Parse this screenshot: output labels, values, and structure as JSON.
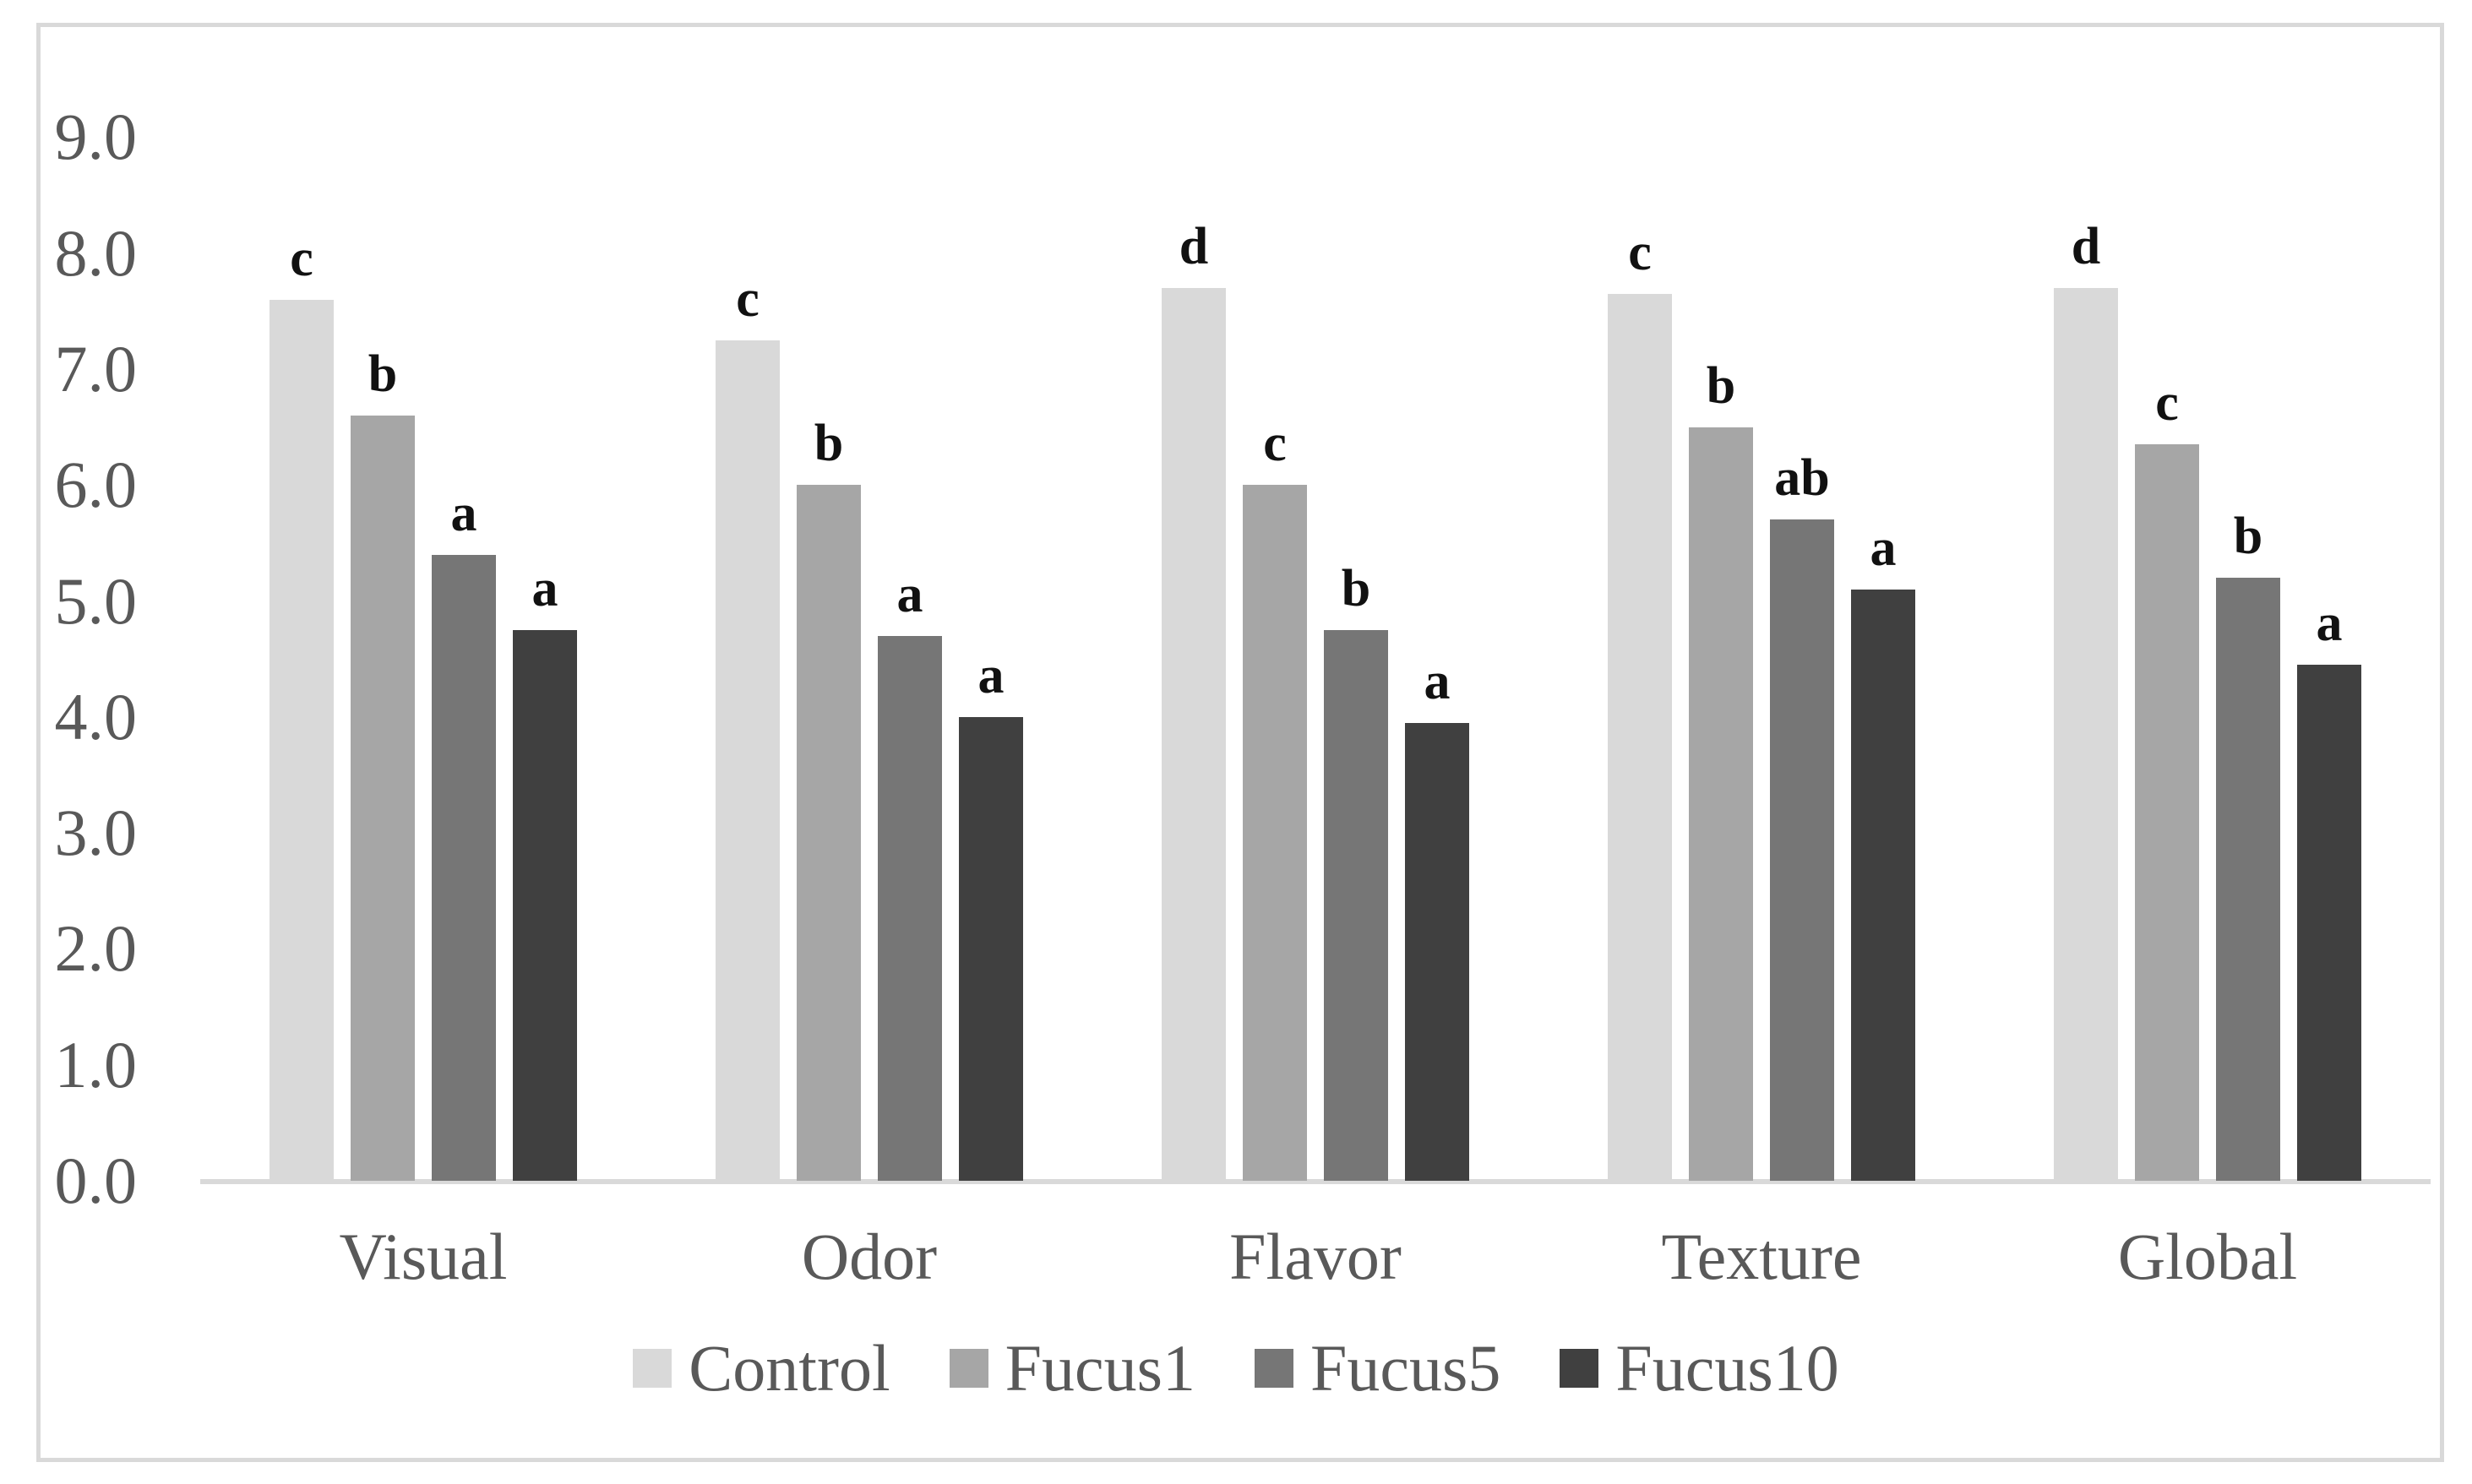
{
  "chart_data": {
    "type": "bar",
    "title": "",
    "xlabel": "",
    "ylabel": "",
    "categories": [
      "Visual",
      "Odor",
      "Flavor",
      "Texture",
      "Global"
    ],
    "series": [
      {
        "name": "Control",
        "color": "#d9d9d9",
        "values": [
          7.6,
          7.25,
          7.7,
          7.65,
          7.7
        ],
        "letters": [
          "c",
          "c",
          "d",
          "c",
          "d"
        ]
      },
      {
        "name": "Fucus1",
        "color": "#a6a6a6",
        "values": [
          6.6,
          6.0,
          6.0,
          6.5,
          6.35
        ],
        "letters": [
          "b",
          "b",
          "c",
          "b",
          "c"
        ]
      },
      {
        "name": "Fucus5",
        "color": "#767676",
        "values": [
          5.4,
          4.7,
          4.75,
          5.7,
          5.2
        ],
        "letters": [
          "a",
          "a",
          "b",
          "ab",
          "b"
        ]
      },
      {
        "name": "Fucus10",
        "color": "#404040",
        "values": [
          4.75,
          4.0,
          3.95,
          5.1,
          4.45
        ],
        "letters": [
          "a",
          "a",
          "a",
          "a",
          "a"
        ]
      }
    ],
    "ylim": [
      0,
      9
    ],
    "ytick_step": 1,
    "ytick_labels": [
      "0.0",
      "1.0",
      "2.0",
      "3.0",
      "4.0",
      "5.0",
      "6.0",
      "7.0",
      "8.0",
      "9.0"
    ],
    "grid": false,
    "legend_position": "bottom"
  },
  "colors": {
    "background": "#ffffff",
    "frame_border": "#d9d9d9",
    "axis_line": "#d9d9d9",
    "axis_text": "#595959",
    "annotation_text": "#111111"
  }
}
